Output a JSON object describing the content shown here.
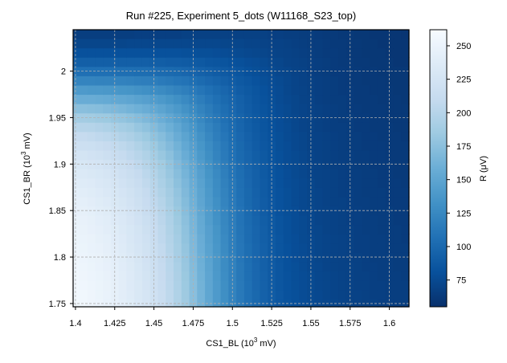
{
  "chart_data": {
    "type": "heatmap",
    "title": "Run #225, Experiment 5_dots (W11168_S23_top)",
    "xlabel": {
      "prefix": "CS1_BL (10",
      "exp": "3",
      "suffix": " mV)"
    },
    "ylabel": {
      "prefix": "CS1_BR (10",
      "exp": "3",
      "suffix": " mV)"
    },
    "colorbar_label": "R (μV)",
    "colormap": "Blues_r",
    "colormap_stops": [
      "#08306b",
      "#08519c",
      "#2171b5",
      "#4292c6",
      "#6baed6",
      "#9ecae1",
      "#c6dbef",
      "#deebf7",
      "#f7fbff"
    ],
    "xlim": [
      1.3985,
      1.6125
    ],
    "ylim": [
      1.7465,
      2.0445
    ],
    "x_ticks": [
      1.4,
      1.425,
      1.45,
      1.475,
      1.5,
      1.525,
      1.55,
      1.575,
      1.6
    ],
    "x_tick_labels": [
      "1.4",
      "1.425",
      "1.45",
      "1.475",
      "1.5",
      "1.525",
      "1.55",
      "1.575",
      "1.6"
    ],
    "y_ticks": [
      1.75,
      1.8,
      1.85,
      1.9,
      1.95,
      2.0
    ],
    "y_tick_labels": [
      "1.75",
      "1.8",
      "1.85",
      "1.9",
      "1.95",
      "2"
    ],
    "colorbar_range": [
      55,
      262
    ],
    "colorbar_ticks": [
      75,
      100,
      125,
      150,
      175,
      200,
      225,
      250
    ],
    "colorbar_tick_labels": [
      "75",
      "100",
      "125",
      "150",
      "175",
      "200",
      "225",
      "250"
    ],
    "grid": true,
    "grid_x": [
      1.4,
      1.425,
      1.45,
      1.475,
      1.5,
      1.525,
      1.55,
      1.575,
      1.6
    ],
    "grid_y": [
      1.75,
      1.8,
      1.85,
      1.9,
      1.95,
      2.0
    ],
    "x": [
      1.4,
      1.405,
      1.41,
      1.415,
      1.42,
      1.425,
      1.43,
      1.435,
      1.44,
      1.445,
      1.45,
      1.455,
      1.46,
      1.465,
      1.47,
      1.475,
      1.48,
      1.485,
      1.49,
      1.495,
      1.5,
      1.505,
      1.51,
      1.515,
      1.52,
      1.525,
      1.53,
      1.535,
      1.54,
      1.545,
      1.55,
      1.555,
      1.56,
      1.565,
      1.57,
      1.575,
      1.58,
      1.585,
      1.59,
      1.595,
      1.6,
      1.605,
      1.61
    ],
    "y": [
      1.75,
      1.76,
      1.77,
      1.78,
      1.79,
      1.8,
      1.81,
      1.82,
      1.83,
      1.84,
      1.85,
      1.86,
      1.87,
      1.88,
      1.89,
      1.9,
      1.91,
      1.92,
      1.93,
      1.94,
      1.95,
      1.96,
      1.97,
      1.98,
      1.99,
      2.0,
      2.01,
      2.02,
      2.03,
      2.04
    ],
    "z": [
      [
        257,
        255,
        253,
        251,
        248,
        245,
        241,
        237,
        232,
        227,
        221,
        214,
        206,
        196,
        186,
        175,
        163,
        152,
        141,
        131,
        122,
        114,
        107,
        100,
        95,
        90,
        86,
        83,
        80,
        78,
        76,
        74,
        73,
        72,
        71,
        70,
        69,
        68,
        68,
        67,
        67,
        66,
        66
      ],
      [
        256,
        255,
        253,
        250,
        248,
        244,
        240,
        236,
        231,
        226,
        220,
        213,
        205,
        196,
        185,
        174,
        163,
        151,
        140,
        130,
        121,
        113,
        106,
        100,
        94,
        90,
        86,
        82,
        80,
        77,
        75,
        74,
        72,
        71,
        70,
        69,
        69,
        68,
        67,
        67,
        66,
        66,
        66
      ],
      [
        256,
        254,
        252,
        250,
        247,
        244,
        240,
        235,
        231,
        225,
        219,
        212,
        204,
        195,
        184,
        173,
        162,
        150,
        140,
        130,
        121,
        113,
        106,
        99,
        94,
        89,
        85,
        82,
        79,
        77,
        75,
        73,
        72,
        71,
        70,
        69,
        68,
        68,
        67,
        67,
        66,
        66,
        66
      ],
      [
        255,
        253,
        251,
        249,
        246,
        243,
        239,
        235,
        230,
        224,
        218,
        211,
        203,
        194,
        183,
        172,
        161,
        150,
        139,
        129,
        120,
        112,
        105,
        99,
        94,
        89,
        85,
        82,
        79,
        77,
        75,
        73,
        72,
        71,
        70,
        69,
        68,
        68,
        67,
        66,
        66,
        66,
        65
      ],
      [
        254,
        252,
        250,
        248,
        245,
        242,
        238,
        234,
        229,
        223,
        217,
        210,
        202,
        193,
        182,
        171,
        160,
        149,
        138,
        128,
        120,
        112,
        105,
        99,
        93,
        89,
        85,
        81,
        79,
        76,
        74,
        73,
        71,
        70,
        69,
        69,
        68,
        67,
        67,
        66,
        66,
        65,
        65
      ],
      [
        253,
        251,
        249,
        247,
        244,
        241,
        237,
        233,
        228,
        222,
        216,
        209,
        201,
        191,
        181,
        170,
        159,
        148,
        138,
        128,
        119,
        111,
        104,
        98,
        93,
        88,
        84,
        81,
        78,
        76,
        74,
        72,
        71,
        70,
        69,
        68,
        68,
        67,
        66,
        66,
        66,
        65,
        65
      ],
      [
        252,
        250,
        248,
        246,
        243,
        240,
        236,
        231,
        226,
        221,
        215,
        208,
        199,
        190,
        180,
        169,
        158,
        147,
        137,
        127,
        118,
        111,
        104,
        98,
        93,
        88,
        84,
        81,
        78,
        76,
        74,
        72,
        71,
        70,
        69,
        68,
        67,
        67,
        66,
        66,
        65,
        65,
        65
      ],
      [
        250,
        249,
        247,
        244,
        242,
        238,
        235,
        230,
        225,
        220,
        213,
        206,
        198,
        189,
        178,
        168,
        157,
        146,
        136,
        126,
        118,
        110,
        103,
        97,
        92,
        88,
        84,
        80,
        78,
        75,
        74,
        72,
        71,
        70,
        69,
        68,
        67,
        67,
        66,
        66,
        65,
        65,
        64
      ],
      [
        249,
        247,
        245,
        243,
        240,
        237,
        233,
        229,
        224,
        218,
        212,
        205,
        196,
        187,
        177,
        166,
        155,
        145,
        135,
        125,
        117,
        109,
        103,
        97,
        92,
        87,
        83,
        80,
        77,
        75,
        73,
        72,
        70,
        69,
        68,
        68,
        67,
        66,
        66,
        65,
        65,
        65,
        64
      ],
      [
        247,
        246,
        244,
        241,
        239,
        235,
        232,
        227,
        222,
        216,
        210,
        203,
        195,
        185,
        175,
        165,
        154,
        143,
        133,
        124,
        116,
        108,
        102,
        96,
        91,
        87,
        83,
        80,
        77,
        75,
        73,
        71,
        70,
        69,
        68,
        67,
        67,
        66,
        66,
        65,
        65,
        64,
        64
      ],
      [
        245,
        244,
        242,
        239,
        237,
        233,
        230,
        225,
        220,
        214,
        208,
        201,
        193,
        183,
        173,
        163,
        152,
        142,
        132,
        123,
        115,
        108,
        101,
        95,
        90,
        86,
        82,
        79,
        77,
        74,
        73,
        71,
        70,
        69,
        68,
        67,
        67,
        66,
        65,
        65,
        65,
        64,
        64
      ],
      [
        243,
        242,
        240,
        237,
        235,
        231,
        228,
        223,
        218,
        212,
        206,
        199,
        190,
        181,
        171,
        161,
        150,
        140,
        131,
        122,
        114,
        107,
        100,
        95,
        90,
        86,
        82,
        79,
        76,
        74,
        72,
        71,
        69,
        68,
        68,
        67,
        66,
        66,
        65,
        65,
        64,
        64,
        64
      ],
      [
        241,
        239,
        237,
        235,
        232,
        229,
        225,
        221,
        216,
        210,
        203,
        196,
        188,
        179,
        169,
        159,
        149,
        139,
        129,
        121,
        113,
        106,
        100,
        94,
        89,
        85,
        82,
        79,
        76,
        74,
        72,
        71,
        69,
        68,
        67,
        67,
        66,
        65,
        65,
        65,
        64,
        64,
        64
      ],
      [
        238,
        236,
        235,
        232,
        230,
        226,
        222,
        218,
        213,
        207,
        201,
        193,
        185,
        176,
        167,
        157,
        147,
        137,
        128,
        119,
        112,
        105,
        99,
        93,
        89,
        85,
        81,
        78,
        76,
        74,
        72,
        70,
        69,
        68,
        67,
        66,
        66,
        65,
        65,
        64,
        64,
        64,
        63
      ],
      [
        234,
        233,
        231,
        229,
        226,
        223,
        219,
        215,
        210,
        204,
        198,
        190,
        182,
        173,
        164,
        154,
        145,
        135,
        126,
        118,
        110,
        104,
        98,
        93,
        88,
        84,
        81,
        78,
        75,
        73,
        71,
        70,
        69,
        68,
        67,
        66,
        66,
        65,
        65,
        64,
        64,
        63,
        63
      ],
      [
        230,
        229,
        227,
        225,
        222,
        219,
        215,
        211,
        206,
        200,
        194,
        187,
        179,
        170,
        161,
        152,
        142,
        133,
        124,
        116,
        109,
        103,
        97,
        92,
        88,
        84,
        80,
        77,
        75,
        73,
        71,
        70,
        68,
        67,
        67,
        66,
        65,
        65,
        64,
        64,
        64,
        63,
        63
      ],
      [
        225,
        224,
        222,
        220,
        217,
        214,
        210,
        206,
        201,
        196,
        189,
        182,
        175,
        166,
        157,
        148,
        139,
        130,
        122,
        114,
        107,
        101,
        96,
        91,
        87,
        83,
        80,
        77,
        75,
        73,
        71,
        69,
        68,
        67,
        66,
        66,
        65,
        65,
        64,
        64,
        63,
        63,
        63
      ],
      [
        219,
        217,
        216,
        214,
        211,
        208,
        205,
        201,
        196,
        190,
        184,
        177,
        170,
        162,
        153,
        145,
        136,
        128,
        120,
        113,
        106,
        100,
        95,
        90,
        86,
        83,
        79,
        77,
        74,
        72,
        70,
        69,
        68,
        67,
        66,
        65,
        65,
        64,
        64,
        64,
        63,
        63,
        63
      ],
      [
        211,
        210,
        208,
        206,
        204,
        201,
        197,
        194,
        189,
        184,
        178,
        172,
        165,
        157,
        149,
        141,
        133,
        125,
        117,
        111,
        104,
        99,
        94,
        89,
        85,
        82,
        79,
        76,
        74,
        72,
        70,
        69,
        68,
        67,
        66,
        65,
        65,
        64,
        64,
        63,
        63,
        63,
        62
      ],
      [
        201,
        200,
        199,
        197,
        195,
        192,
        189,
        186,
        181,
        177,
        171,
        165,
        159,
        152,
        144,
        137,
        129,
        122,
        115,
        108,
        103,
        97,
        92,
        88,
        84,
        81,
        78,
        76,
        73,
        71,
        70,
        68,
        67,
        66,
        66,
        65,
        64,
        64,
        63,
        63,
        63,
        62,
        62
      ],
      [
        189,
        188,
        187,
        185,
        184,
        181,
        179,
        176,
        172,
        168,
        163,
        158,
        152,
        146,
        139,
        132,
        125,
        118,
        112,
        106,
        101,
        96,
        91,
        87,
        84,
        80,
        78,
        75,
        73,
        71,
        70,
        68,
        67,
        66,
        65,
        65,
        64,
        64,
        63,
        63,
        62,
        62,
        62
      ],
      [
        174,
        174,
        173,
        172,
        170,
        168,
        166,
        163,
        160,
        157,
        153,
        149,
        144,
        139,
        133,
        127,
        121,
        115,
        109,
        104,
        99,
        94,
        90,
        86,
        83,
        80,
        77,
        75,
        72,
        71,
        69,
        68,
        67,
        66,
        65,
        64,
        64,
        63,
        63,
        63,
        62,
        62,
        62
      ],
      [
        158,
        157,
        157,
        156,
        155,
        153,
        152,
        150,
        147,
        145,
        142,
        139,
        135,
        131,
        126,
        121,
        116,
        111,
        106,
        101,
        97,
        93,
        89,
        85,
        82,
        79,
        76,
        74,
        72,
        70,
        69,
        67,
        66,
        65,
        65,
        64,
        63,
        63,
        63,
        62,
        62,
        62,
        61
      ],
      [
        140,
        140,
        139,
        139,
        138,
        137,
        136,
        135,
        133,
        131,
        129,
        127,
        124,
        121,
        118,
        114,
        110,
        106,
        102,
        98,
        94,
        90,
        87,
        84,
        81,
        78,
        76,
        73,
        71,
        70,
        68,
        67,
        66,
        65,
        64,
        64,
        63,
        63,
        62,
        62,
        62,
        61,
        61
      ],
      [
        122,
        122,
        122,
        121,
        121,
        120,
        120,
        119,
        118,
        117,
        116,
        114,
        112,
        110,
        108,
        105,
        102,
        99,
        96,
        93,
        90,
        87,
        85,
        82,
        79,
        77,
        75,
        73,
        71,
        69,
        68,
        67,
        66,
        65,
        64,
        63,
        63,
        62,
        62,
        62,
        61,
        61,
        61
      ],
      [
        106,
        106,
        106,
        106,
        106,
        105,
        105,
        105,
        104,
        104,
        103,
        102,
        101,
        100,
        98,
        96,
        94,
        92,
        90,
        88,
        86,
        84,
        81,
        79,
        77,
        75,
        73,
        72,
        70,
        69,
        67,
        66,
        65,
        64,
        64,
        63,
        63,
        62,
        62,
        61,
        61,
        61,
        61
      ],
      [
        92,
        92,
        92,
        92,
        92,
        92,
        92,
        92,
        92,
        92,
        91,
        91,
        90,
        90,
        89,
        88,
        87,
        85,
        84,
        83,
        81,
        80,
        78,
        77,
        75,
        73,
        72,
        70,
        69,
        68,
        67,
        66,
        65,
        64,
        63,
        63,
        62,
        62,
        61,
        61,
        61,
        60,
        60
      ],
      [
        81,
        81,
        81,
        81,
        81,
        81,
        81,
        81,
        81,
        81,
        81,
        81,
        81,
        81,
        80,
        80,
        79,
        79,
        78,
        77,
        76,
        75,
        74,
        73,
        72,
        71,
        70,
        69,
        68,
        67,
        66,
        65,
        64,
        64,
        63,
        62,
        62,
        61,
        61,
        61,
        60,
        60,
        60
      ],
      [
        72,
        72,
        72,
        72,
        72,
        72,
        72,
        73,
        73,
        73,
        73,
        73,
        73,
        73,
        73,
        73,
        73,
        73,
        73,
        72,
        72,
        72,
        71,
        71,
        70,
        69,
        69,
        68,
        67,
        66,
        65,
        65,
        64,
        63,
        63,
        62,
        62,
        61,
        61,
        60,
        60,
        60,
        60
      ],
      [
        66,
        66,
        66,
        66,
        66,
        66,
        66,
        66,
        67,
        67,
        67,
        67,
        67,
        67,
        68,
        68,
        68,
        68,
        68,
        68,
        68,
        68,
        68,
        68,
        68,
        67,
        67,
        66,
        66,
        65,
        65,
        64,
        63,
        63,
        62,
        62,
        61,
        61,
        60,
        60,
        60,
        60,
        59
      ]
    ]
  }
}
